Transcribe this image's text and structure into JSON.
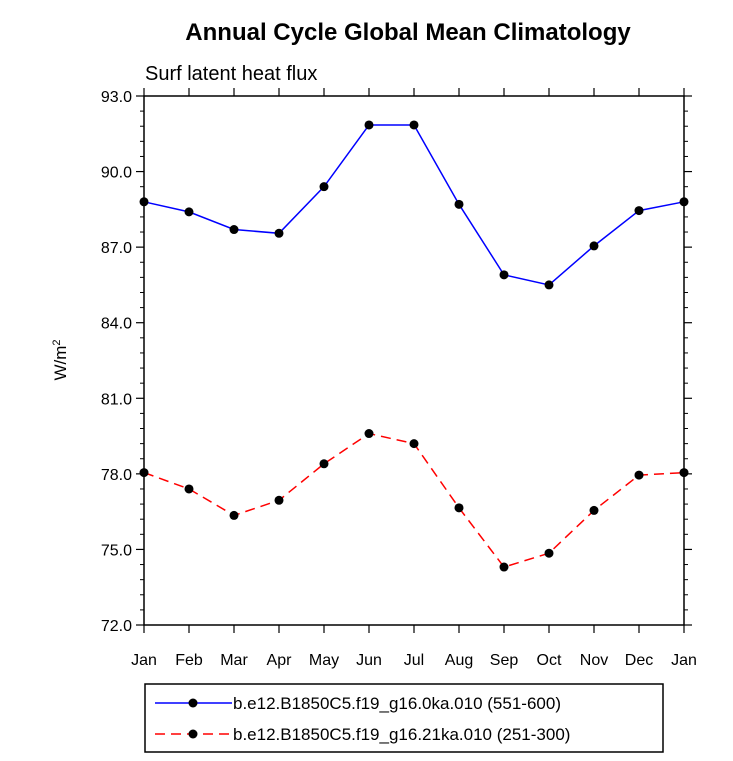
{
  "chart_data": {
    "type": "line",
    "title": "Annual Cycle Global Mean Climatology",
    "subtitle": "Surf latent heat flux",
    "ylabel": "W/m",
    "ylabel_sup": "2",
    "xlabel": "",
    "categories": [
      "Jan",
      "Feb",
      "Mar",
      "Apr",
      "May",
      "Jun",
      "Jul",
      "Aug",
      "Sep",
      "Oct",
      "Nov",
      "Dec",
      "Jan"
    ],
    "ylim": [
      72.0,
      93.0
    ],
    "yticks": [
      "72.0",
      "75.0",
      "78.0",
      "81.0",
      "84.0",
      "87.0",
      "90.0",
      "93.0"
    ],
    "ytick_values": [
      72,
      75,
      78,
      81,
      84,
      87,
      90,
      93
    ],
    "grid": false,
    "legend_position": "bottom",
    "series": [
      {
        "name": "b.e12.B1850C5.f19_g16.0ka.010 (551-600)",
        "color": "#0000ff",
        "dash": "solid",
        "values": [
          88.8,
          88.4,
          87.7,
          87.55,
          89.4,
          91.85,
          91.85,
          88.7,
          85.9,
          85.5,
          87.05,
          88.45,
          88.8
        ]
      },
      {
        "name": "b.e12.B1850C5.f19_g16.21ka.010 (251-300)",
        "color": "#ff0000",
        "dash": "dashed",
        "values": [
          78.05,
          77.4,
          76.35,
          76.95,
          78.4,
          79.6,
          79.2,
          76.65,
          74.3,
          74.85,
          76.55,
          77.95,
          78.05
        ]
      }
    ]
  }
}
